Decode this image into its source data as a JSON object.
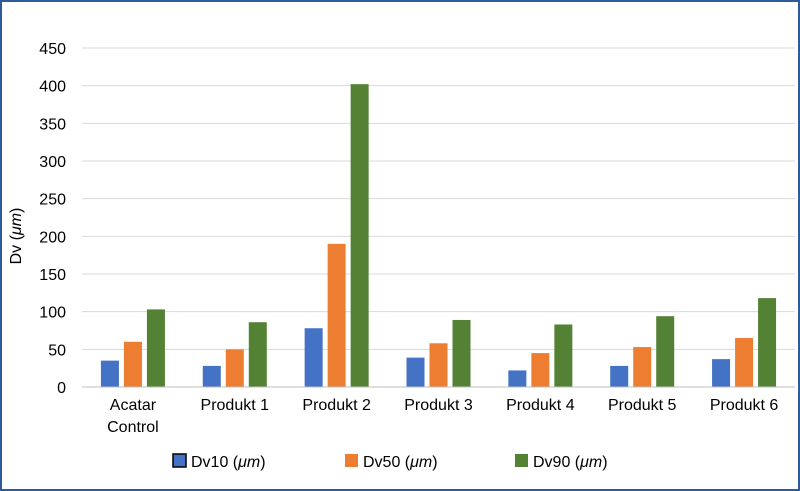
{
  "chart_data": {
    "type": "bar",
    "categories": [
      "Acatar Control",
      "Produkt 1",
      "Produkt 2",
      "Produkt 3",
      "Produkt 4",
      "Produkt 5",
      "Produkt 6"
    ],
    "category_lines": [
      [
        "Acatar",
        "Control"
      ],
      [
        "Produkt 1"
      ],
      [
        "Produkt 2"
      ],
      [
        "Produkt 3"
      ],
      [
        "Produkt 4"
      ],
      [
        "Produkt 5"
      ],
      [
        "Produkt 6"
      ]
    ],
    "series": [
      {
        "name": "Dv10 (μm)",
        "name_prefix": "Dv10 (",
        "name_unit": "μm",
        "name_suffix": ")",
        "color": "#4472c4",
        "values": [
          35,
          28,
          78,
          39,
          22,
          28,
          37
        ]
      },
      {
        "name": "Dv50 (μm)",
        "name_prefix": "Dv50 (",
        "name_unit": "μm",
        "name_suffix": ")",
        "color": "#ed7d31",
        "values": [
          60,
          50,
          190,
          58,
          45,
          53,
          65
        ]
      },
      {
        "name": "Dv90 (μm)",
        "name_prefix": "Dv90 (",
        "name_unit": "μm",
        "name_suffix": ")",
        "color": "#548235",
        "values": [
          103,
          86,
          402,
          89,
          83,
          94,
          118
        ]
      }
    ],
    "ylabel": "Dv (μm)",
    "ylabel_prefix": "Dv (",
    "ylabel_unit": "μm",
    "ylabel_suffix": ")",
    "xlabel": "",
    "ylim": [
      0,
      450
    ],
    "yticks": [
      0,
      50,
      100,
      150,
      200,
      250,
      300,
      350,
      400,
      450
    ],
    "grid": true,
    "legend_position": "bottom"
  }
}
